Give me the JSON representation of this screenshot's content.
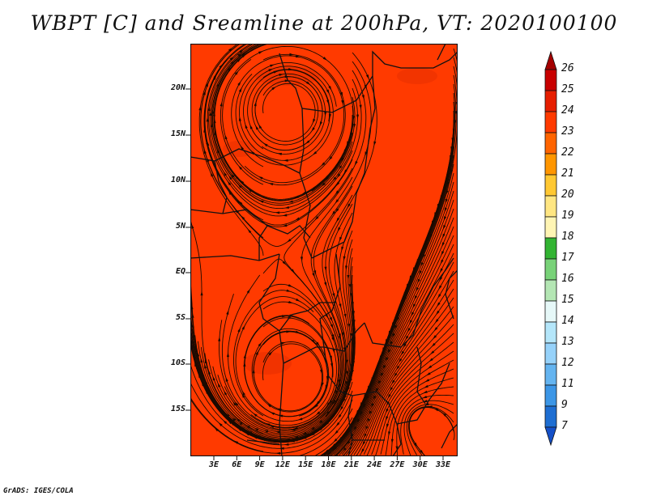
{
  "title": "WBPT [C] and Sreamline at 200hPa, VT: 2020100100",
  "credit": "GrADS: IGES/COLA",
  "map": {
    "fill_color": "#ff3a00",
    "lat_labels": [
      "20N",
      "15N",
      "10N",
      "5N",
      "EQ",
      "5S",
      "10S",
      "15S"
    ],
    "lon_labels": [
      "3E",
      "6E",
      "9E",
      "12E",
      "15E",
      "18E",
      "21E",
      "24E",
      "27E",
      "30E",
      "33E"
    ]
  },
  "colorbar": {
    "labels": [
      "26",
      "25",
      "24",
      "23",
      "22",
      "21",
      "20",
      "19",
      "18",
      "17",
      "16",
      "15",
      "14",
      "13",
      "12",
      "11",
      "9",
      "7"
    ],
    "colors": [
      "#a50000",
      "#c80000",
      "#e61e00",
      "#ff3a00",
      "#ff6400",
      "#ff9600",
      "#ffc832",
      "#ffe682",
      "#fff5b4",
      "#32b432",
      "#78d278",
      "#b4e6b4",
      "#e6f8f8",
      "#b4e6fa",
      "#96d2fa",
      "#64b4f0",
      "#3c96e6",
      "#1e6ed2",
      "#1450c8"
    ]
  }
}
